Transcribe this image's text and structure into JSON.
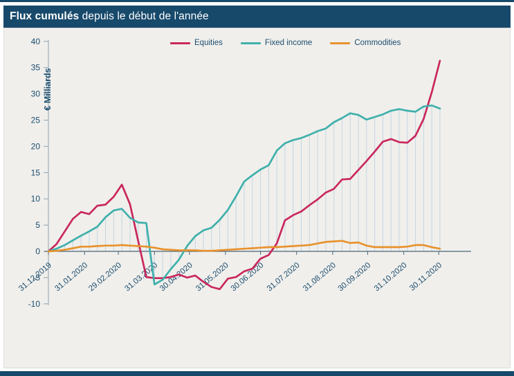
{
  "header": {
    "title_bold": "Flux cumulés",
    "title_rest": " depuis le début de l'année"
  },
  "chart_data": {
    "type": "line",
    "title": "Flux cumulés depuis le début de l'année",
    "xlabel": "",
    "ylabel": "€ Milliards",
    "ylim": [
      -10,
      40
    ],
    "y_tick_labels": [
      "40",
      "35",
      "30",
      "25",
      "20",
      "15",
      "10",
      "5",
      "0",
      "-5",
      "-10"
    ],
    "x_unit": "weeks since 31.12.2019 (weekly data points)",
    "x_tick_labels": [
      "31.12.2019",
      "31.01.2020",
      "29.02.2020",
      "31.03.2020",
      "30.04.2020",
      "31.05.2020",
      "30.06.2020",
      "31.07.2020",
      "31.08.2020",
      "30.09.2020",
      "31.10.2020",
      "30.11.2020"
    ],
    "x_tick_weeks": [
      0,
      4.43,
      8.57,
      13.0,
      17.29,
      21.71,
      26.0,
      30.43,
      34.86,
      39.14,
      43.57,
      47.86
    ],
    "grid": "light-blue vertical drop lines from zero axis to Fixed income series at each weekly point",
    "legend_position": "top",
    "series": [
      {
        "name": "Equities",
        "color": "#c9275d",
        "values": [
          0,
          1.4,
          3.8,
          6.2,
          7.5,
          7.1,
          8.7,
          8.9,
          10.4,
          12.7,
          9.0,
          2.0,
          -4.9,
          -5.1,
          -5.1,
          -4.9,
          -4.4,
          -5.0,
          -4.6,
          -5.8,
          -6.8,
          -7.2,
          -5.2,
          -4.9,
          -3.8,
          -3.3,
          -1.4,
          -0.7,
          1.5,
          5.9,
          6.9,
          7.6,
          8.8,
          9.9,
          11.2,
          11.9,
          13.7,
          13.8,
          15.5,
          17.2,
          19.0,
          20.9,
          21.4,
          20.8,
          20.7,
          22.0,
          25.2,
          30.3,
          36.3
        ]
      },
      {
        "name": "Fixed income",
        "color": "#3fb0ab",
        "values": [
          0,
          0.5,
          1.2,
          2.1,
          3.0,
          3.8,
          4.7,
          6.5,
          7.8,
          8.1,
          6.4,
          5.5,
          5.4,
          -6.3,
          -5.4,
          -3.4,
          -1.6,
          1.0,
          2.9,
          4.0,
          4.5,
          6.0,
          7.9,
          10.5,
          13.3,
          14.5,
          15.6,
          16.4,
          19.2,
          20.6,
          21.2,
          21.6,
          22.2,
          22.9,
          23.4,
          24.6,
          25.4,
          26.3,
          26.0,
          25.1,
          25.6,
          26.1,
          26.8,
          27.1,
          26.8,
          26.6,
          27.6,
          27.8,
          27.2
        ]
      },
      {
        "name": "Commodities",
        "color": "#e8922d",
        "values": [
          0,
          0.1,
          0.3,
          0.6,
          0.9,
          0.9,
          1.0,
          1.1,
          1.1,
          1.2,
          1.1,
          1.0,
          0.9,
          0.7,
          0.4,
          0.3,
          0.2,
          0.2,
          0.2,
          0.1,
          0.1,
          0.2,
          0.3,
          0.4,
          0.5,
          0.6,
          0.7,
          0.8,
          0.8,
          0.9,
          1.0,
          1.1,
          1.2,
          1.5,
          1.8,
          1.9,
          2.0,
          1.6,
          1.7,
          1.1,
          0.8,
          0.8,
          0.8,
          0.8,
          0.9,
          1.2,
          1.2,
          0.8,
          0.5
        ]
      }
    ]
  },
  "colors": {
    "header_bg": "#17496b",
    "panel_bg": "#f0efec",
    "page_bg": "#ffffff",
    "text_navy": "#1c4d6e",
    "x_axis_line": "#4a6575",
    "y_spine": "#8fa3af",
    "drop_line": "#b9d0e2"
  }
}
